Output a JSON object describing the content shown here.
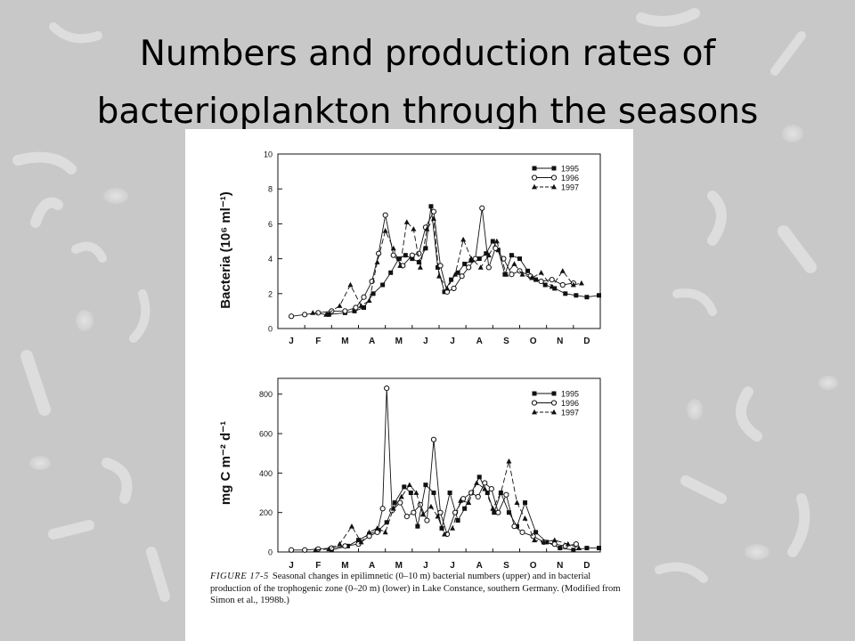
{
  "slide": {
    "title_line1": "Numbers and production rates of",
    "title_line2": "bacterioplankton through the seasons"
  },
  "figure": {
    "caption_label": "FIGURE 17-5",
    "caption_text": "Seasonal changes in epilimnetic (0–10 m) bacterial numbers (upper) and in bacterial production of the trophogenic zone (0–20 m) (lower) in Lake Constance, southern Germany. (Modified from Simon et al., 1998b.)"
  },
  "colors": {
    "background": "#c8c8c8",
    "paper": "#ffffff",
    "ink": "#111111"
  },
  "chart_data": [
    {
      "type": "line",
      "title": "",
      "ylabel": "Bacteria (10⁶ ml⁻¹)",
      "xlabel": "",
      "x_ticks": [
        "J",
        "F",
        "M",
        "A",
        "M",
        "J",
        "J",
        "A",
        "S",
        "O",
        "N",
        "D"
      ],
      "ylim": [
        0,
        10
      ],
      "y_ticks": [
        0,
        2,
        4,
        6,
        8,
        10
      ],
      "legend_position": "top-right",
      "series": [
        {
          "name": "1995",
          "style": "solid",
          "marker": "filled-square",
          "points": [
            [
              1.9,
              0.8
            ],
            [
              2.5,
              0.9
            ],
            [
              2.85,
              1.0
            ],
            [
              3.2,
              1.2
            ],
            [
              3.55,
              2.0
            ],
            [
              3.9,
              2.5
            ],
            [
              4.2,
              3.2
            ],
            [
              4.5,
              4.0
            ],
            [
              4.75,
              4.2
            ],
            [
              5.0,
              4.0
            ],
            [
              5.25,
              3.8
            ],
            [
              5.5,
              4.6
            ],
            [
              5.7,
              7.0
            ],
            [
              5.95,
              3.5
            ],
            [
              6.2,
              2.1
            ],
            [
              6.45,
              2.8
            ],
            [
              6.7,
              3.2
            ],
            [
              6.95,
              3.7
            ],
            [
              7.2,
              3.9
            ],
            [
              7.5,
              4.0
            ],
            [
              7.75,
              4.3
            ],
            [
              8.0,
              5.0
            ],
            [
              8.2,
              4.5
            ],
            [
              8.45,
              3.1
            ],
            [
              8.7,
              4.2
            ],
            [
              9.0,
              4.0
            ],
            [
              9.3,
              3.3
            ],
            [
              9.6,
              2.8
            ],
            [
              9.95,
              2.5
            ],
            [
              10.3,
              2.3
            ],
            [
              10.7,
              2.0
            ],
            [
              11.1,
              1.9
            ],
            [
              11.5,
              1.8
            ],
            [
              11.95,
              1.9
            ]
          ]
        },
        {
          "name": "1996",
          "style": "solid",
          "marker": "open-circle",
          "points": [
            [
              0.5,
              0.7
            ],
            [
              1.0,
              0.8
            ],
            [
              1.5,
              0.9
            ],
            [
              2.0,
              1.0
            ],
            [
              2.5,
              1.0
            ],
            [
              2.9,
              1.2
            ],
            [
              3.2,
              1.8
            ],
            [
              3.5,
              2.7
            ],
            [
              3.75,
              4.3
            ],
            [
              4.0,
              6.5
            ],
            [
              4.3,
              4.2
            ],
            [
              4.65,
              3.6
            ],
            [
              5.0,
              4.2
            ],
            [
              5.25,
              4.3
            ],
            [
              5.5,
              5.8
            ],
            [
              5.8,
              6.7
            ],
            [
              6.05,
              3.6
            ],
            [
              6.3,
              2.1
            ],
            [
              6.55,
              2.3
            ],
            [
              6.85,
              3.0
            ],
            [
              7.1,
              3.5
            ],
            [
              7.35,
              4.0
            ],
            [
              7.6,
              6.9
            ],
            [
              7.85,
              3.5
            ],
            [
              8.1,
              4.6
            ],
            [
              8.4,
              4.0
            ],
            [
              8.7,
              3.1
            ],
            [
              9.0,
              3.3
            ],
            [
              9.4,
              3.0
            ],
            [
              9.8,
              2.7
            ],
            [
              10.2,
              2.8
            ],
            [
              10.6,
              2.5
            ],
            [
              11.0,
              2.6
            ]
          ]
        },
        {
          "name": "1997",
          "style": "dashed",
          "marker": "filled-triangle",
          "points": [
            [
              1.3,
              0.9
            ],
            [
              1.8,
              0.8
            ],
            [
              2.3,
              1.3
            ],
            [
              2.7,
              2.5
            ],
            [
              3.1,
              1.3
            ],
            [
              3.4,
              1.6
            ],
            [
              3.7,
              3.8
            ],
            [
              4.0,
              5.6
            ],
            [
              4.3,
              4.6
            ],
            [
              4.55,
              3.6
            ],
            [
              4.8,
              6.1
            ],
            [
              5.05,
              5.7
            ],
            [
              5.3,
              3.5
            ],
            [
              5.55,
              5.7
            ],
            [
              5.8,
              6.3
            ],
            [
              6.0,
              3.0
            ],
            [
              6.3,
              2.3
            ],
            [
              6.6,
              3.1
            ],
            [
              6.9,
              5.1
            ],
            [
              7.2,
              4.0
            ],
            [
              7.55,
              3.5
            ],
            [
              7.85,
              4.2
            ],
            [
              8.15,
              5.0
            ],
            [
              8.5,
              3.1
            ],
            [
              8.8,
              3.7
            ],
            [
              9.1,
              3.1
            ],
            [
              9.45,
              2.9
            ],
            [
              9.8,
              3.2
            ],
            [
              10.2,
              2.4
            ],
            [
              10.6,
              3.3
            ],
            [
              11.0,
              2.5
            ],
            [
              11.3,
              2.6
            ]
          ]
        }
      ]
    },
    {
      "type": "line",
      "title": "",
      "ylabel": "mg C m⁻² d⁻¹",
      "xlabel": "",
      "x_ticks": [
        "J",
        "F",
        "M",
        "A",
        "M",
        "J",
        "J",
        "A",
        "S",
        "O",
        "N",
        "D"
      ],
      "ylim": [
        0,
        880
      ],
      "y_ticks": [
        0,
        200,
        400,
        600,
        800
      ],
      "legend_position": "top-right",
      "series": [
        {
          "name": "1995",
          "style": "solid",
          "marker": "filled-square",
          "points": [
            [
              2.0,
              10
            ],
            [
              2.6,
              30
            ],
            [
              3.0,
              60
            ],
            [
              3.4,
              90
            ],
            [
              3.75,
              110
            ],
            [
              4.05,
              150
            ],
            [
              4.35,
              250
            ],
            [
              4.7,
              330
            ],
            [
              4.95,
              300
            ],
            [
              5.2,
              130
            ],
            [
              5.5,
              340
            ],
            [
              5.8,
              300
            ],
            [
              6.1,
              120
            ],
            [
              6.4,
              300
            ],
            [
              6.7,
              160
            ],
            [
              6.95,
              220
            ],
            [
              7.2,
              300
            ],
            [
              7.5,
              380
            ],
            [
              7.8,
              300
            ],
            [
              8.05,
              200
            ],
            [
              8.3,
              300
            ],
            [
              8.6,
              200
            ],
            [
              8.9,
              130
            ],
            [
              9.2,
              250
            ],
            [
              9.6,
              100
            ],
            [
              10.0,
              50
            ],
            [
              10.5,
              20
            ],
            [
              11.0,
              10
            ],
            [
              11.5,
              20
            ],
            [
              11.95,
              20
            ]
          ]
        },
        {
          "name": "1996",
          "style": "solid",
          "marker": "open-circle",
          "points": [
            [
              0.5,
              10
            ],
            [
              1.0,
              10
            ],
            [
              1.5,
              15
            ],
            [
              2.0,
              20
            ],
            [
              2.5,
              30
            ],
            [
              3.0,
              40
            ],
            [
              3.4,
              80
            ],
            [
              3.7,
              100
            ],
            [
              3.9,
              220
            ],
            [
              4.05,
              830
            ],
            [
              4.25,
              210
            ],
            [
              4.55,
              250
            ],
            [
              4.8,
              180
            ],
            [
              5.05,
              200
            ],
            [
              5.3,
              240
            ],
            [
              5.55,
              160
            ],
            [
              5.8,
              570
            ],
            [
              6.05,
              200
            ],
            [
              6.3,
              90
            ],
            [
              6.6,
              200
            ],
            [
              6.9,
              270
            ],
            [
              7.2,
              300
            ],
            [
              7.45,
              280
            ],
            [
              7.7,
              350
            ],
            [
              7.95,
              320
            ],
            [
              8.2,
              200
            ],
            [
              8.5,
              290
            ],
            [
              8.8,
              130
            ],
            [
              9.1,
              100
            ],
            [
              9.5,
              80
            ],
            [
              9.9,
              50
            ],
            [
              10.3,
              40
            ],
            [
              10.7,
              30
            ],
            [
              11.1,
              40
            ]
          ]
        },
        {
          "name": "1997",
          "style": "dashed",
          "marker": "filled-triangle",
          "points": [
            [
              1.4,
              10
            ],
            [
              1.9,
              15
            ],
            [
              2.3,
              40
            ],
            [
              2.75,
              130
            ],
            [
              3.1,
              50
            ],
            [
              3.4,
              100
            ],
            [
              3.7,
              120
            ],
            [
              4.0,
              100
            ],
            [
              4.3,
              220
            ],
            [
              4.6,
              280
            ],
            [
              4.9,
              340
            ],
            [
              5.15,
              300
            ],
            [
              5.4,
              190
            ],
            [
              5.7,
              230
            ],
            [
              5.95,
              180
            ],
            [
              6.2,
              90
            ],
            [
              6.5,
              120
            ],
            [
              6.8,
              260
            ],
            [
              7.1,
              250
            ],
            [
              7.4,
              350
            ],
            [
              7.7,
              320
            ],
            [
              8.0,
              220
            ],
            [
              8.3,
              300
            ],
            [
              8.6,
              460
            ],
            [
              8.9,
              250
            ],
            [
              9.2,
              170
            ],
            [
              9.55,
              60
            ],
            [
              9.9,
              50
            ],
            [
              10.3,
              60
            ],
            [
              10.8,
              40
            ],
            [
              11.2,
              20
            ]
          ]
        }
      ]
    }
  ]
}
